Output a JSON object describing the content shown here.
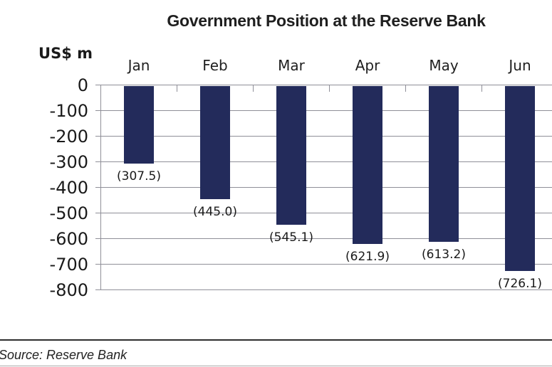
{
  "title": "Government Position at the Reserve Bank",
  "y_axis_unit_label": "US$ m",
  "source_note": "Source: Reserve Bank",
  "colors": {
    "bar": "#232b5b",
    "gridline": "#8f8f98",
    "text": "#1a1a1a",
    "divider": "#2d2d2d"
  },
  "chart_data": {
    "type": "bar",
    "title": "Government Position at the Reserve Bank",
    "xlabel": "",
    "ylabel": "US$ m",
    "categories": [
      "Jan",
      "Feb",
      "Mar",
      "Apr",
      "May",
      "Jun"
    ],
    "values": [
      -307.5,
      -445.0,
      -545.1,
      -621.9,
      -613.2,
      -726.1
    ],
    "data_labels": [
      "(307.5)",
      "(445.0)",
      "(545.1)",
      "(621.9)",
      "(613.2)",
      "(726.1)"
    ],
    "ylim": [
      -800,
      0
    ],
    "y_ticks": [
      0,
      -100,
      -200,
      -300,
      -400,
      -500,
      -600,
      -700,
      -800
    ],
    "grid": true,
    "legend_position": "none",
    "bar_color": "#232b5b"
  }
}
